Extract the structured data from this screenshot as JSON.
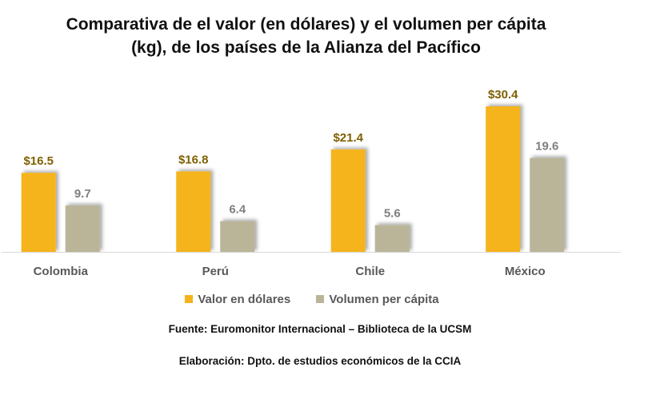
{
  "chart_data": {
    "type": "bar",
    "title": "Comparativa de el valor (en dólares) y el volumen per cápita (kg), de los países de la Alianza del Pacífico",
    "title_lines": [
      "Comparativa de el valor (en dólares) y el volumen per cápita",
      "(kg), de los países de la Alianza del Pacífico"
    ],
    "categories": [
      "Colombia",
      "Perú",
      "Chile",
      "México"
    ],
    "series": [
      {
        "name": "Valor en dólares",
        "values": [
          16.5,
          16.8,
          21.4,
          30.4
        ],
        "labels": [
          "$16.5",
          "$16.8",
          "$21.4",
          "$30.4"
        ],
        "color": "#F5B41A",
        "label_color": "#7F6000"
      },
      {
        "name": "Volumen per cápita",
        "values": [
          9.7,
          6.4,
          5.6,
          19.6
        ],
        "labels": [
          "9.7",
          "6.4",
          "5.6",
          "19.6"
        ],
        "color": "#BAB599",
        "label_color": "#7F7F7F"
      }
    ],
    "xlabel": "",
    "ylabel": "",
    "ylim": [
      0,
      33
    ],
    "grid": false,
    "legend": "bottom"
  },
  "footer": {
    "source": "Fuente: Euromonitor Internacional – Biblioteca de la UCSM",
    "elaboration": "Elaboración: Dpto. de estudios económicos de la CCIA"
  }
}
